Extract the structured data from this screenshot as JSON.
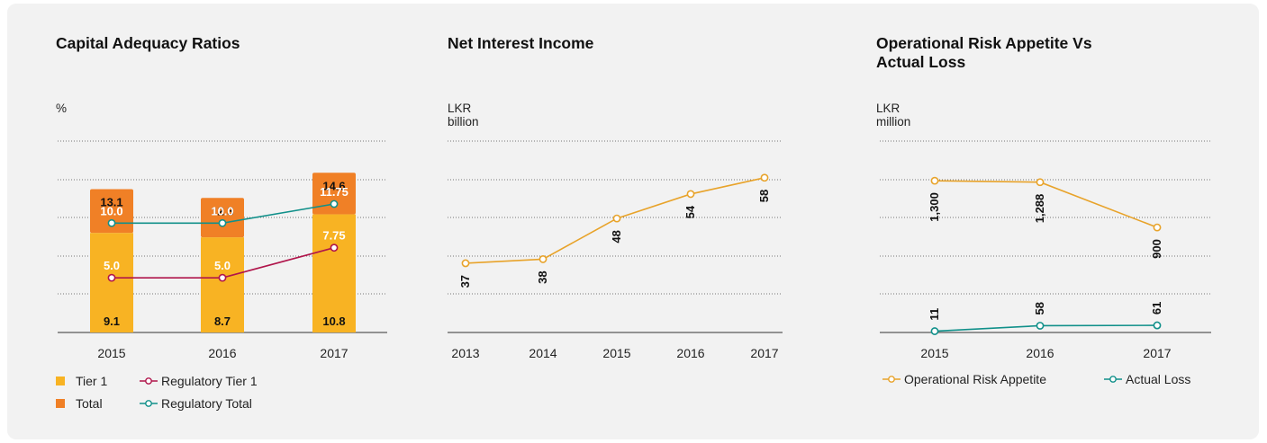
{
  "colors": {
    "tier1": "#F8B323",
    "total": "#F08026",
    "regulatory_tier1": "#B0154B",
    "regulatory_total": "#11908A",
    "appetite": "#E8A32A",
    "actual_loss": "#11908A",
    "nii": "#E8A32A"
  },
  "chart_data": [
    {
      "type": "bar",
      "title": "Capital Adequacy Ratios",
      "unit": "%",
      "categories": [
        "2015",
        "2016",
        "2017"
      ],
      "series": [
        {
          "name": "Tier 1",
          "values": [
            9.1,
            8.7,
            10.8
          ],
          "kind": "stacked-bar"
        },
        {
          "name": "Total",
          "values": [
            13.1,
            12.3,
            14.6
          ],
          "kind": "stacked-bar"
        },
        {
          "name": "Regulatory Tier 1",
          "values": [
            5.0,
            5.0,
            7.75
          ],
          "labels": [
            "5.0",
            "5.0",
            "7.75"
          ],
          "kind": "line"
        },
        {
          "name": "Regulatory Total",
          "values": [
            10.0,
            10.0,
            11.75
          ],
          "labels": [
            "10.0",
            "10.0",
            "11.75"
          ],
          "kind": "line"
        }
      ],
      "ylim": [
        0,
        17.5
      ],
      "grid": true,
      "legend_position": "bottom"
    },
    {
      "type": "line",
      "title": "Net Interest Income",
      "unit": "LKR billion",
      "categories": [
        "2013",
        "2014",
        "2015",
        "2016",
        "2017"
      ],
      "series": [
        {
          "name": "",
          "values": [
            37,
            38,
            48,
            54,
            58
          ],
          "labels": [
            "37",
            "38",
            "48",
            "54",
            "58"
          ]
        }
      ],
      "ylim": [
        20,
        67
      ],
      "grid": true
    },
    {
      "type": "line",
      "title": "Operational Risk Appetite Vs\nActual Loss",
      "unit": "LKR million",
      "categories": [
        "2015",
        "2016",
        "2017"
      ],
      "series": [
        {
          "name": "Operational Risk Appetite",
          "values": [
            1300,
            1288,
            900
          ],
          "labels": [
            "1,300",
            "1,288",
            "900"
          ]
        },
        {
          "name": "Actual Loss",
          "values": [
            11,
            58,
            61
          ],
          "labels": [
            "11",
            "58",
            "61"
          ]
        }
      ],
      "ylim": [
        0,
        1640
      ],
      "grid": true,
      "legend_position": "bottom"
    }
  ]
}
